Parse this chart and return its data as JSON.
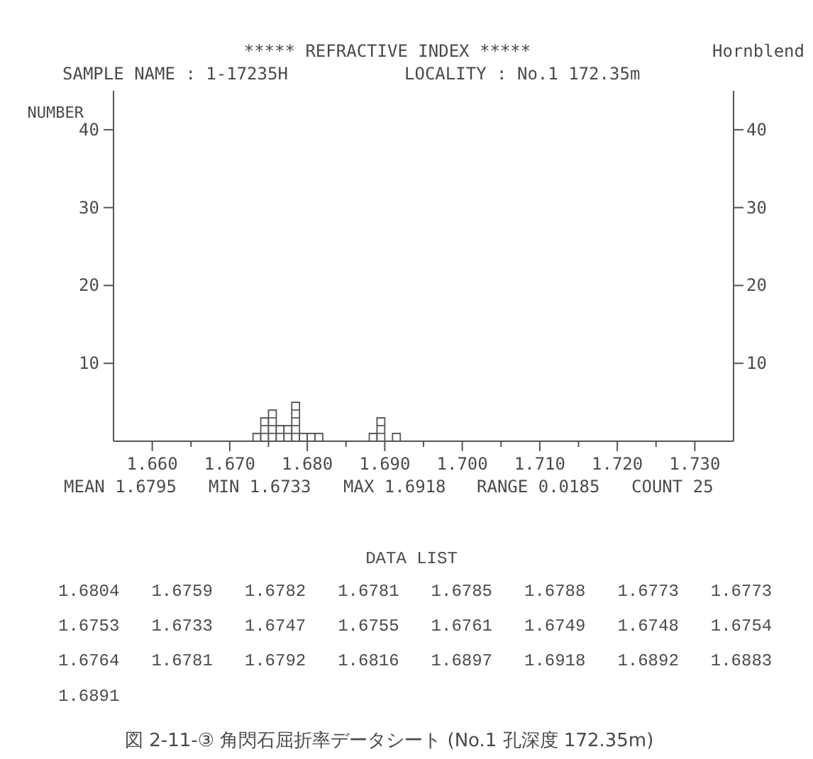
{
  "chart_data": {
    "type": "histogram",
    "title": "***** REFRACTIVE INDEX *****",
    "subtitle": "SAMPLE NAME : 1-17235H",
    "ylabel": "NUMBER",
    "annotations": [
      "LOCALITY : No.1 172.35m",
      "Hornblend",
      "MEAN 1.6795",
      "MIN 1.6733",
      "MAX 1.6918",
      "RANGE 0.0185",
      "COUNT 25",
      "DATA LIST",
      "1.6804",
      "1.6759",
      "1.6782",
      "1.6781",
      "1.6785",
      "1.6788",
      "1.6773",
      "1.6773",
      "1.6753",
      "1.6733",
      "1.6747",
      "1.6755",
      "1.6761",
      "1.6749",
      "1.6748",
      "1.6754",
      "1.6764",
      "1.6781",
      "1.6792",
      "1.6816",
      "1.6897",
      "1.6918",
      "1.6892",
      "1.6883",
      "1.6891",
      "図 2-11-③ 角閃石屈折率データシート (No.1 孔深度 172.35m)"
    ],
    "bins": [
      1.673,
      1.674,
      1.675,
      1.676,
      1.677,
      1.678,
      1.679,
      1.68,
      1.681,
      1.682,
      1.688,
      1.689,
      1.69,
      1.691,
      1.692
    ],
    "values": [
      1,
      3,
      4,
      2,
      2,
      5,
      1,
      1,
      1,
      0,
      1,
      3,
      0,
      1
    ],
    "xlim": [
      1.655,
      1.735
    ],
    "xticks": [
      {
        "value": 1.66,
        "label": "1.660"
      },
      {
        "value": 1.665,
        "label": null
      },
      {
        "value": 1.67,
        "label": "1.670"
      },
      {
        "value": 1.675,
        "label": null
      },
      {
        "value": 1.68,
        "label": "1.680"
      },
      {
        "value": 1.685,
        "label": null
      },
      {
        "value": 1.69,
        "label": "1.690"
      },
      {
        "value": 1.695,
        "label": null
      },
      {
        "value": 1.7,
        "label": "1.700"
      },
      {
        "value": 1.705,
        "label": null
      },
      {
        "value": 1.71,
        "label": "1.710"
      },
      {
        "value": 1.715,
        "label": null
      },
      {
        "value": 1.72,
        "label": "1.720"
      },
      {
        "value": 1.725,
        "label": null
      },
      {
        "value": 1.73,
        "label": "1.730"
      }
    ],
    "ylim": [
      0,
      45
    ],
    "yticks": [
      10,
      20,
      30,
      40
    ],
    "y2lim": [
      0,
      45
    ],
    "y2ticks": [
      10,
      20,
      30,
      40
    ]
  }
}
